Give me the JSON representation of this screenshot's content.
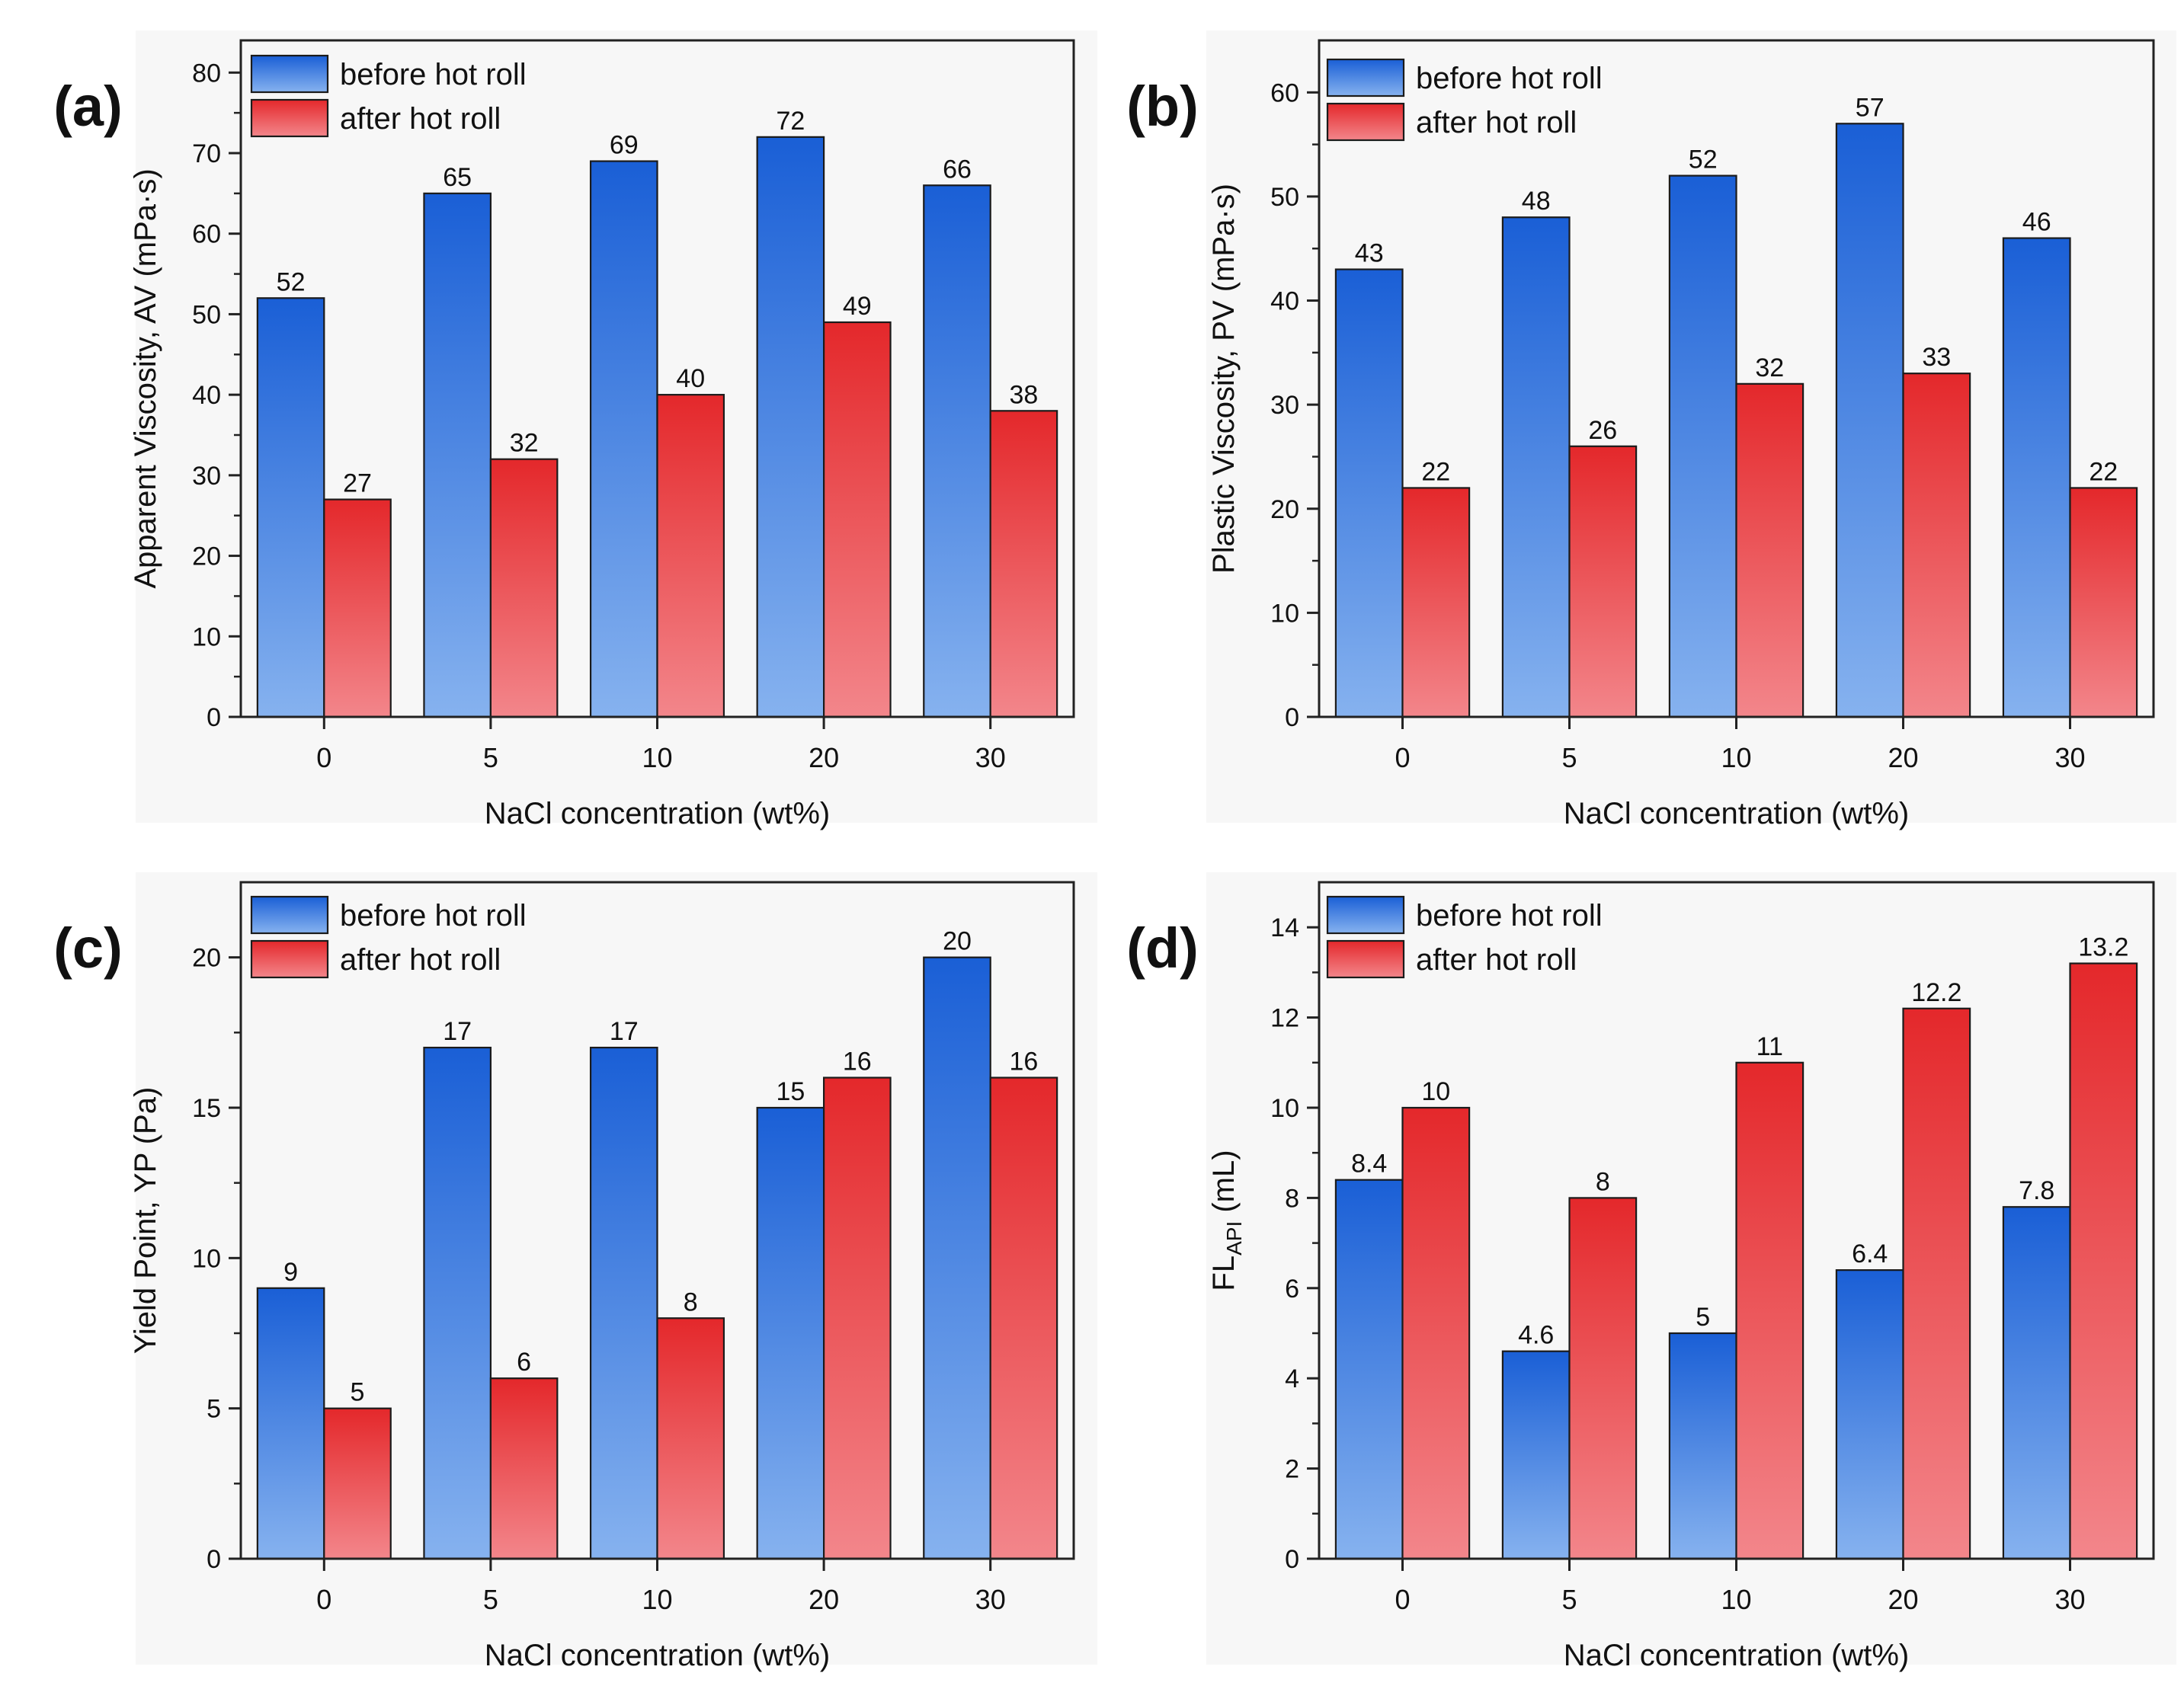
{
  "figure": {
    "panels": [
      {
        "id": "a",
        "panel_label": "(a)",
        "chart_data": {
          "type": "bar",
          "categories": [
            "0",
            "5",
            "10",
            "20",
            "30"
          ],
          "series": [
            {
              "name": "before hot roll",
              "values": [
                52,
                65,
                69,
                72,
                66
              ],
              "labels": [
                "52",
                "65",
                "69",
                "72",
                "66"
              ]
            },
            {
              "name": "after hot roll",
              "values": [
                27,
                32,
                40,
                49,
                38
              ],
              "labels": [
                "27",
                "32",
                "40",
                "49",
                "38"
              ]
            }
          ],
          "title": "",
          "xlabel": "NaCl concentration (wt%)",
          "ylabel": "Apparent Viscosity, AV (mPa·s)",
          "ylim": [
            0,
            84
          ],
          "yticks": [
            0,
            10,
            20,
            30,
            40,
            50,
            60,
            70,
            80
          ],
          "ytick_labels": [
            "0",
            "10",
            "20",
            "30",
            "40",
            "50",
            "60",
            "70",
            "80"
          ],
          "minor_ticks": true,
          "grid": false,
          "legend_position": "top-left"
        }
      },
      {
        "id": "b",
        "panel_label": "(b)",
        "chart_data": {
          "type": "bar",
          "categories": [
            "0",
            "5",
            "10",
            "20",
            "30"
          ],
          "series": [
            {
              "name": "before hot roll",
              "values": [
                43,
                48,
                52,
                57,
                46
              ],
              "labels": [
                "43",
                "48",
                "52",
                "57",
                "46"
              ]
            },
            {
              "name": "after hot roll",
              "values": [
                22,
                26,
                32,
                33,
                22
              ],
              "labels": [
                "22",
                "26",
                "32",
                "33",
                "22"
              ]
            }
          ],
          "title": "",
          "xlabel": "NaCl concentration (wt%)",
          "ylabel": "Plastic Viscosity, PV (mPa·s)",
          "ylim": [
            0,
            65
          ],
          "yticks": [
            0,
            10,
            20,
            30,
            40,
            50,
            60
          ],
          "ytick_labels": [
            "0",
            "10",
            "20",
            "30",
            "40",
            "50",
            "60"
          ],
          "minor_ticks": true,
          "grid": false,
          "legend_position": "top-left"
        }
      },
      {
        "id": "c",
        "panel_label": "(c)",
        "chart_data": {
          "type": "bar",
          "categories": [
            "0",
            "5",
            "10",
            "20",
            "30"
          ],
          "series": [
            {
              "name": "before hot roll",
              "values": [
                9,
                17,
                17,
                15,
                20
              ],
              "labels": [
                "9",
                "17",
                "17",
                "15",
                "20"
              ]
            },
            {
              "name": "after hot roll",
              "values": [
                5,
                6,
                8,
                16,
                16
              ],
              "labels": [
                "5",
                "6",
                "8",
                "16",
                "16"
              ]
            }
          ],
          "title": "",
          "xlabel": "NaCl concentration (wt%)",
          "ylabel": "Yield Point, YP (Pa)",
          "ylim": [
            0,
            22.5
          ],
          "yticks": [
            0,
            5,
            10,
            15,
            20
          ],
          "ytick_labels": [
            "0",
            "5",
            "10",
            "15",
            "20"
          ],
          "minor_ticks": true,
          "grid": false,
          "legend_position": "top-left"
        }
      },
      {
        "id": "d",
        "panel_label": "(d)",
        "chart_data": {
          "type": "bar",
          "categories": [
            "0",
            "5",
            "10",
            "20",
            "30"
          ],
          "series": [
            {
              "name": "before hot roll",
              "values": [
                8.4,
                4.6,
                5,
                6.4,
                7.8
              ],
              "labels": [
                "8.4",
                "4.6",
                "5",
                "6.4",
                "7.8"
              ]
            },
            {
              "name": "after hot roll",
              "values": [
                10,
                8,
                11,
                12.2,
                13.2
              ],
              "labels": [
                "10",
                "8",
                "11",
                "12.2",
                "13.2"
              ]
            }
          ],
          "title": "",
          "xlabel": "NaCl concentration (wt%)",
          "ylabel": "FL",
          "ylabel_subscript": "API",
          "ylabel_suffix": " (mL)",
          "ylim": [
            0,
            15
          ],
          "yticks": [
            0,
            2,
            4,
            6,
            8,
            10,
            12,
            14
          ],
          "ytick_labels": [
            "0",
            "2",
            "4",
            "6",
            "8",
            "10",
            "12",
            "14"
          ],
          "minor_ticks": true,
          "grid": false,
          "legend_position": "top-left"
        }
      }
    ],
    "colors": {
      "before_top": "#1a5fd6",
      "before_bottom": "#86b2ef",
      "after_top": "#e4282b",
      "after_bottom": "#f3868b",
      "panel_background": "#f7f7f7",
      "axis": "#222222",
      "text": "#111111"
    }
  }
}
